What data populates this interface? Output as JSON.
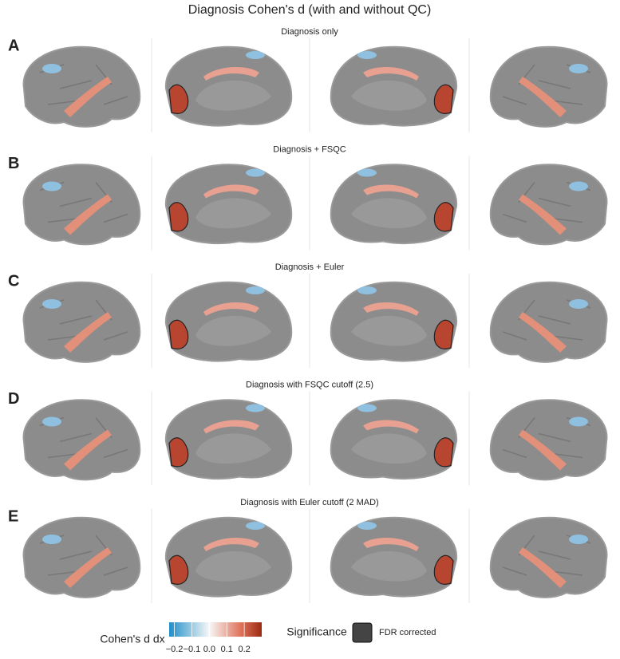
{
  "title": "Diagnosis Cohen's d (with and without QC)",
  "panels": [
    {
      "letter": "A",
      "subtitle": "Diagnosis only"
    },
    {
      "letter": "B",
      "subtitle": "Diagnosis + FSQC"
    },
    {
      "letter": "C",
      "subtitle": "Diagnosis + Euler"
    },
    {
      "letter": "D",
      "subtitle": "Diagnosis with FSQC cutoff (2.5)"
    },
    {
      "letter": "E",
      "subtitle": "Diagnosis with Euler cutoff (2 MAD)"
    }
  ],
  "colorbar": {
    "title": "Cohen's d dx",
    "lim": [
      -0.23,
      0.3
    ],
    "ticks": [
      {
        "value": -0.2,
        "label": "−0.2"
      },
      {
        "value": -0.1,
        "label": "−0.1"
      },
      {
        "value": 0,
        "label": "0.0"
      },
      {
        "value": 0.1,
        "label": "0.1"
      },
      {
        "value": 0.2,
        "label": "0.2"
      }
    ]
  },
  "significance": {
    "title": "Significance",
    "label": "FDR corrected"
  }
}
